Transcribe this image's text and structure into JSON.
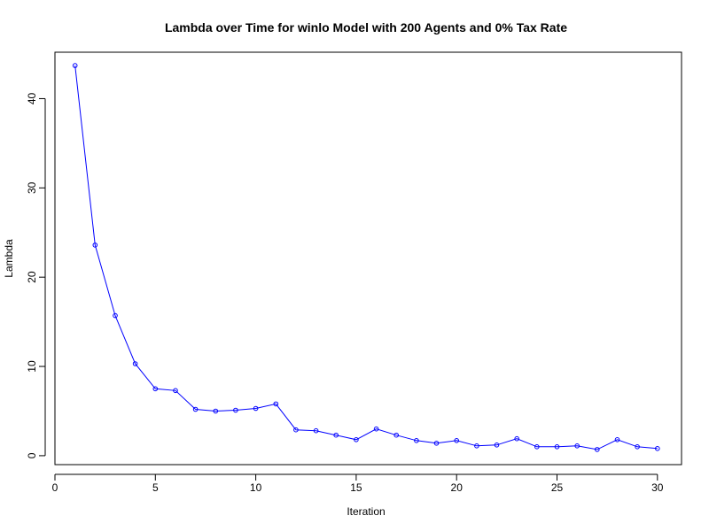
{
  "chart_data": {
    "type": "line",
    "title": "Lambda over Time for winlo Model with 200 Agents and 0% Tax Rate",
    "xlabel": "Iteration",
    "ylabel": "Lambda",
    "xlim": [
      0,
      31.2
    ],
    "ylim": [
      -1,
      45.2
    ],
    "xticks": [
      "0",
      "5",
      "10",
      "15",
      "20",
      "25",
      "30"
    ],
    "yticks": [
      "0",
      "10",
      "20",
      "30",
      "40"
    ],
    "grid": false,
    "legend": "none",
    "line_color": "#0000ff",
    "series": [
      {
        "x": [
          1,
          2,
          3,
          4,
          5,
          6,
          7,
          8,
          9,
          10,
          11,
          12,
          13,
          14,
          15,
          16,
          17,
          18,
          19,
          20,
          21,
          22,
          23,
          24,
          25,
          26,
          27,
          28,
          29,
          30
        ],
        "values": [
          43.7,
          23.6,
          15.7,
          10.3,
          7.5,
          7.3,
          5.2,
          5.0,
          5.1,
          5.3,
          5.8,
          2.9,
          2.8,
          2.3,
          1.8,
          3.0,
          2.3,
          1.7,
          1.4,
          1.7,
          1.1,
          1.2,
          1.9,
          1.0,
          1.0,
          1.1,
          0.7,
          1.8,
          1.0,
          0.8
        ]
      }
    ]
  }
}
